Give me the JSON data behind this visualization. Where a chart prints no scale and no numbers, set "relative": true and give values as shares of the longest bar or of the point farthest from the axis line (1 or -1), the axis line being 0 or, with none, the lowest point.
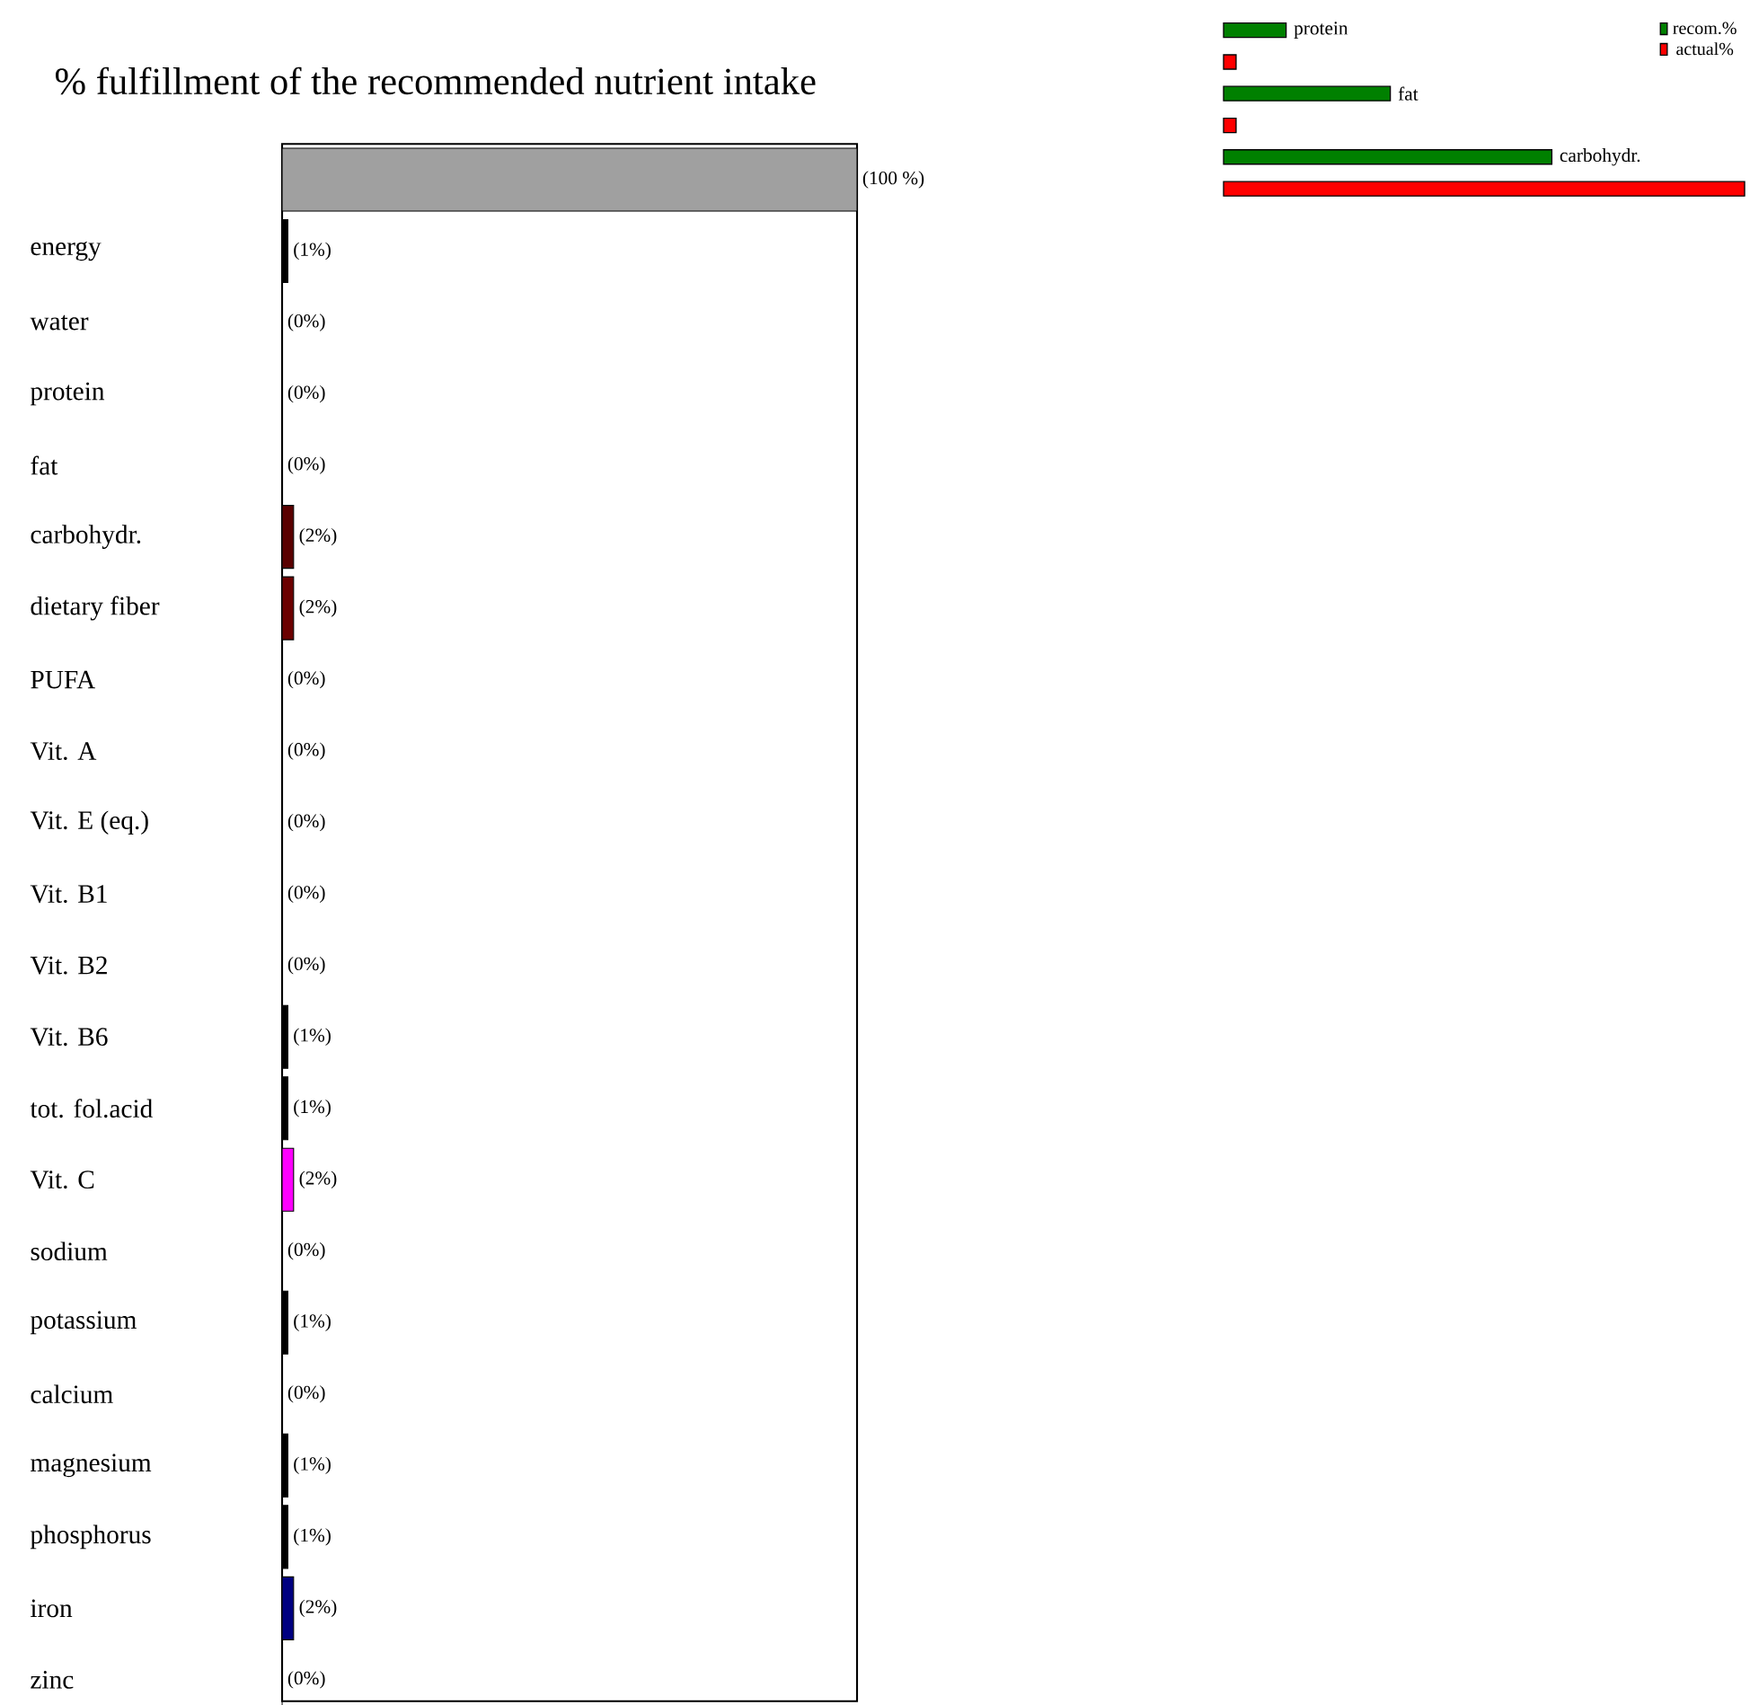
{
  "chart_data": [
    {
      "type": "bar",
      "orientation": "horizontal",
      "title": "% fulfillment of the recommended nutrient intake",
      "categories": [
        null,
        "energy",
        "water",
        "protein",
        "fat",
        "carbohydr.",
        "dietary fiber",
        "PUFA",
        "Vit. A",
        "Vit. E (eq.)",
        "Vit. B1",
        "Vit. B2",
        "Vit. B6",
        "tot. fol.acid",
        "Vit. C",
        "sodium",
        "potassium",
        "calcium",
        "magnesium",
        "phosphorus",
        "iron",
        "zinc"
      ],
      "values": [
        100,
        1,
        0,
        0,
        0,
        2,
        2,
        0,
        0,
        0,
        0,
        0,
        1,
        1,
        2,
        0,
        1,
        0,
        1,
        1,
        2,
        0
      ],
      "colors": [
        "#a0a0a0",
        "#000000",
        "#000000",
        "#000000",
        "#000000",
        "#5a0000",
        "#6b0000",
        "#000000",
        "#000000",
        "#000000",
        "#000000",
        "#000000",
        "#000000",
        "#000000",
        "#ff00ff",
        "#000000",
        "#000000",
        "#000000",
        "#000000",
        "#000000",
        "#000080",
        "#000000"
      ],
      "value_labels": [
        "(100 %)",
        "(1%)",
        "(0%)",
        "(0%)",
        "(0%)",
        "(2%)",
        "(2%)",
        "(0%)",
        "(0%)",
        "(0%)",
        "(0%)",
        "(0%)",
        "(1%)",
        "(1%)",
        "(2%)",
        "(0%)",
        "(1%)",
        "(0%)",
        "(1%)",
        "(1%)",
        "(2%)",
        "(0%)"
      ],
      "xlim": [
        0,
        100
      ],
      "tick_labels": "y"
    },
    {
      "type": "bar",
      "orientation": "horizontal",
      "relative": true,
      "categories": [
        null,
        null,
        null
      ],
      "annotations": [
        "protein",
        "fat",
        "carbohydr."
      ],
      "series": [
        {
          "name": "recom.%",
          "color": "#008000",
          "values": [
            0.12,
            0.32,
            0.63
          ]
        },
        {
          "name": "actual%",
          "color": "#ff0000",
          "values": [
            0.024,
            0.024,
            1
          ]
        }
      ],
      "legend": "top right",
      "tick_labels": false
    }
  ]
}
